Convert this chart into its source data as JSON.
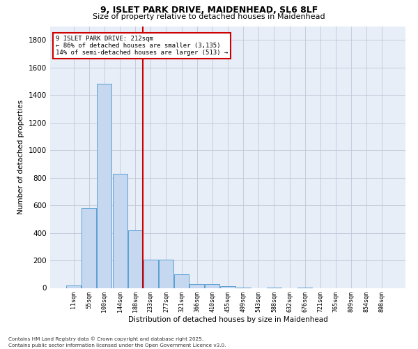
{
  "title1": "9, ISLET PARK DRIVE, MAIDENHEAD, SL6 8LF",
  "title2": "Size of property relative to detached houses in Maidenhead",
  "xlabel": "Distribution of detached houses by size in Maidenhead",
  "ylabel": "Number of detached properties",
  "footer1": "Contains HM Land Registry data © Crown copyright and database right 2025.",
  "footer2": "Contains public sector information licensed under the Open Government Licence v3.0.",
  "bar_color": "#c5d8f0",
  "bar_edge_color": "#5a9fd4",
  "grid_color": "#c0c8d8",
  "background_color": "#e8eef8",
  "vline_color": "#cc0000",
  "vline_x": 4.5,
  "annotation_text": "9 ISLET PARK DRIVE: 212sqm\n← 86% of detached houses are smaller (3,135)\n14% of semi-detached houses are larger (513) →",
  "annotation_box_color": "#cc0000",
  "categories": [
    "11sqm",
    "55sqm",
    "100sqm",
    "144sqm",
    "188sqm",
    "233sqm",
    "277sqm",
    "321sqm",
    "366sqm",
    "410sqm",
    "455sqm",
    "499sqm",
    "543sqm",
    "588sqm",
    "632sqm",
    "676sqm",
    "721sqm",
    "765sqm",
    "809sqm",
    "854sqm",
    "898sqm"
  ],
  "values": [
    20,
    580,
    1480,
    830,
    420,
    205,
    205,
    100,
    30,
    30,
    15,
    5,
    0,
    5,
    0,
    5,
    0,
    0,
    0,
    0,
    0
  ],
  "ylim": [
    0,
    1900
  ],
  "yticks": [
    0,
    200,
    400,
    600,
    800,
    1000,
    1200,
    1400,
    1600,
    1800
  ]
}
